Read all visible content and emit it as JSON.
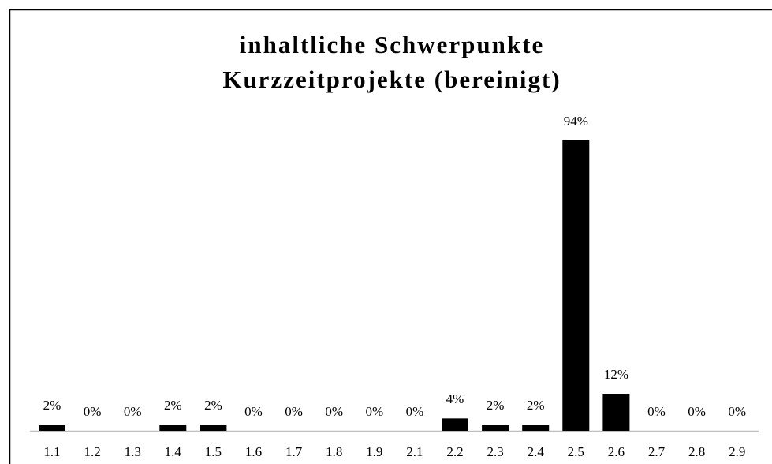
{
  "chart_data": {
    "type": "bar",
    "title": [
      "inhaltliche Schwerpunkte",
      "Kurzzeitprojekte (bereinigt)"
    ],
    "categories": [
      "1.1",
      "1.2",
      "1.3",
      "1.4",
      "1.5",
      "1.6",
      "1.7",
      "1.8",
      "1.9",
      "2.1",
      "2.2",
      "2.3",
      "2.4",
      "2.5",
      "2.6",
      "2.7",
      "2.8",
      "2.9"
    ],
    "values": [
      2,
      0,
      0,
      2,
      2,
      0,
      0,
      0,
      0,
      0,
      4,
      2,
      2,
      94,
      12,
      0,
      0,
      0
    ],
    "value_labels": [
      "2%",
      "0%",
      "0%",
      "2%",
      "2%",
      "0%",
      "0%",
      "0%",
      "0%",
      "0%",
      "4%",
      "2%",
      "2%",
      "94%",
      "12%",
      "0%",
      "0%",
      "0%"
    ],
    "color": "#000000"
  }
}
